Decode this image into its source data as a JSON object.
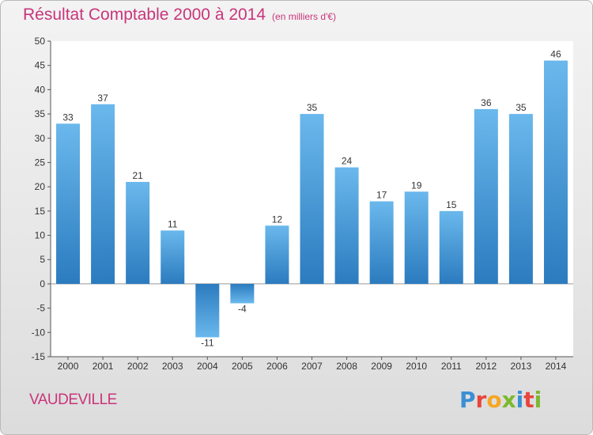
{
  "title": "Résultat Comptable 2000 à 2014",
  "unit_note": "(en milliers d'€)",
  "commune": "VAUDEVILLE",
  "logo": {
    "text": "Proxiti",
    "letters": [
      {
        "ch": "P",
        "color": "#3b8fd4"
      },
      {
        "ch": "r",
        "color": "#e8453c"
      },
      {
        "ch": "o",
        "color": "#f5a623"
      },
      {
        "ch": "x",
        "color": "#7cb82f"
      },
      {
        "ch": "i",
        "color": "#3b8fd4"
      },
      {
        "ch": "t",
        "color": "#e8453c"
      },
      {
        "ch": "i",
        "color": "#7cb82f"
      }
    ]
  },
  "colors": {
    "title": "#c8357b",
    "bar_light": "#6ab8ec",
    "bar_dark": "#2b7bbf",
    "plot_bg": "#ffffff"
  },
  "chart_data": {
    "type": "bar",
    "title": "Résultat Comptable 2000 à 2014",
    "categories": [
      "2000",
      "2001",
      "2002",
      "2003",
      "2004",
      "2005",
      "2006",
      "2007",
      "2008",
      "2009",
      "2010",
      "2011",
      "2012",
      "2013",
      "2014"
    ],
    "values": [
      33,
      37,
      21,
      11,
      -11,
      -4,
      12,
      35,
      24,
      17,
      19,
      15,
      36,
      35,
      46
    ],
    "value_labels": [
      "33",
      "37",
      "21",
      "11",
      "-11",
      "-4",
      "12",
      "35",
      "24",
      "17",
      "19",
      "15",
      "36",
      "35",
      "46"
    ],
    "ylim": [
      -15,
      50
    ],
    "yticks": [
      -15,
      -10,
      -5,
      0,
      5,
      10,
      15,
      20,
      25,
      30,
      35,
      40,
      45,
      50
    ],
    "grid": false
  }
}
